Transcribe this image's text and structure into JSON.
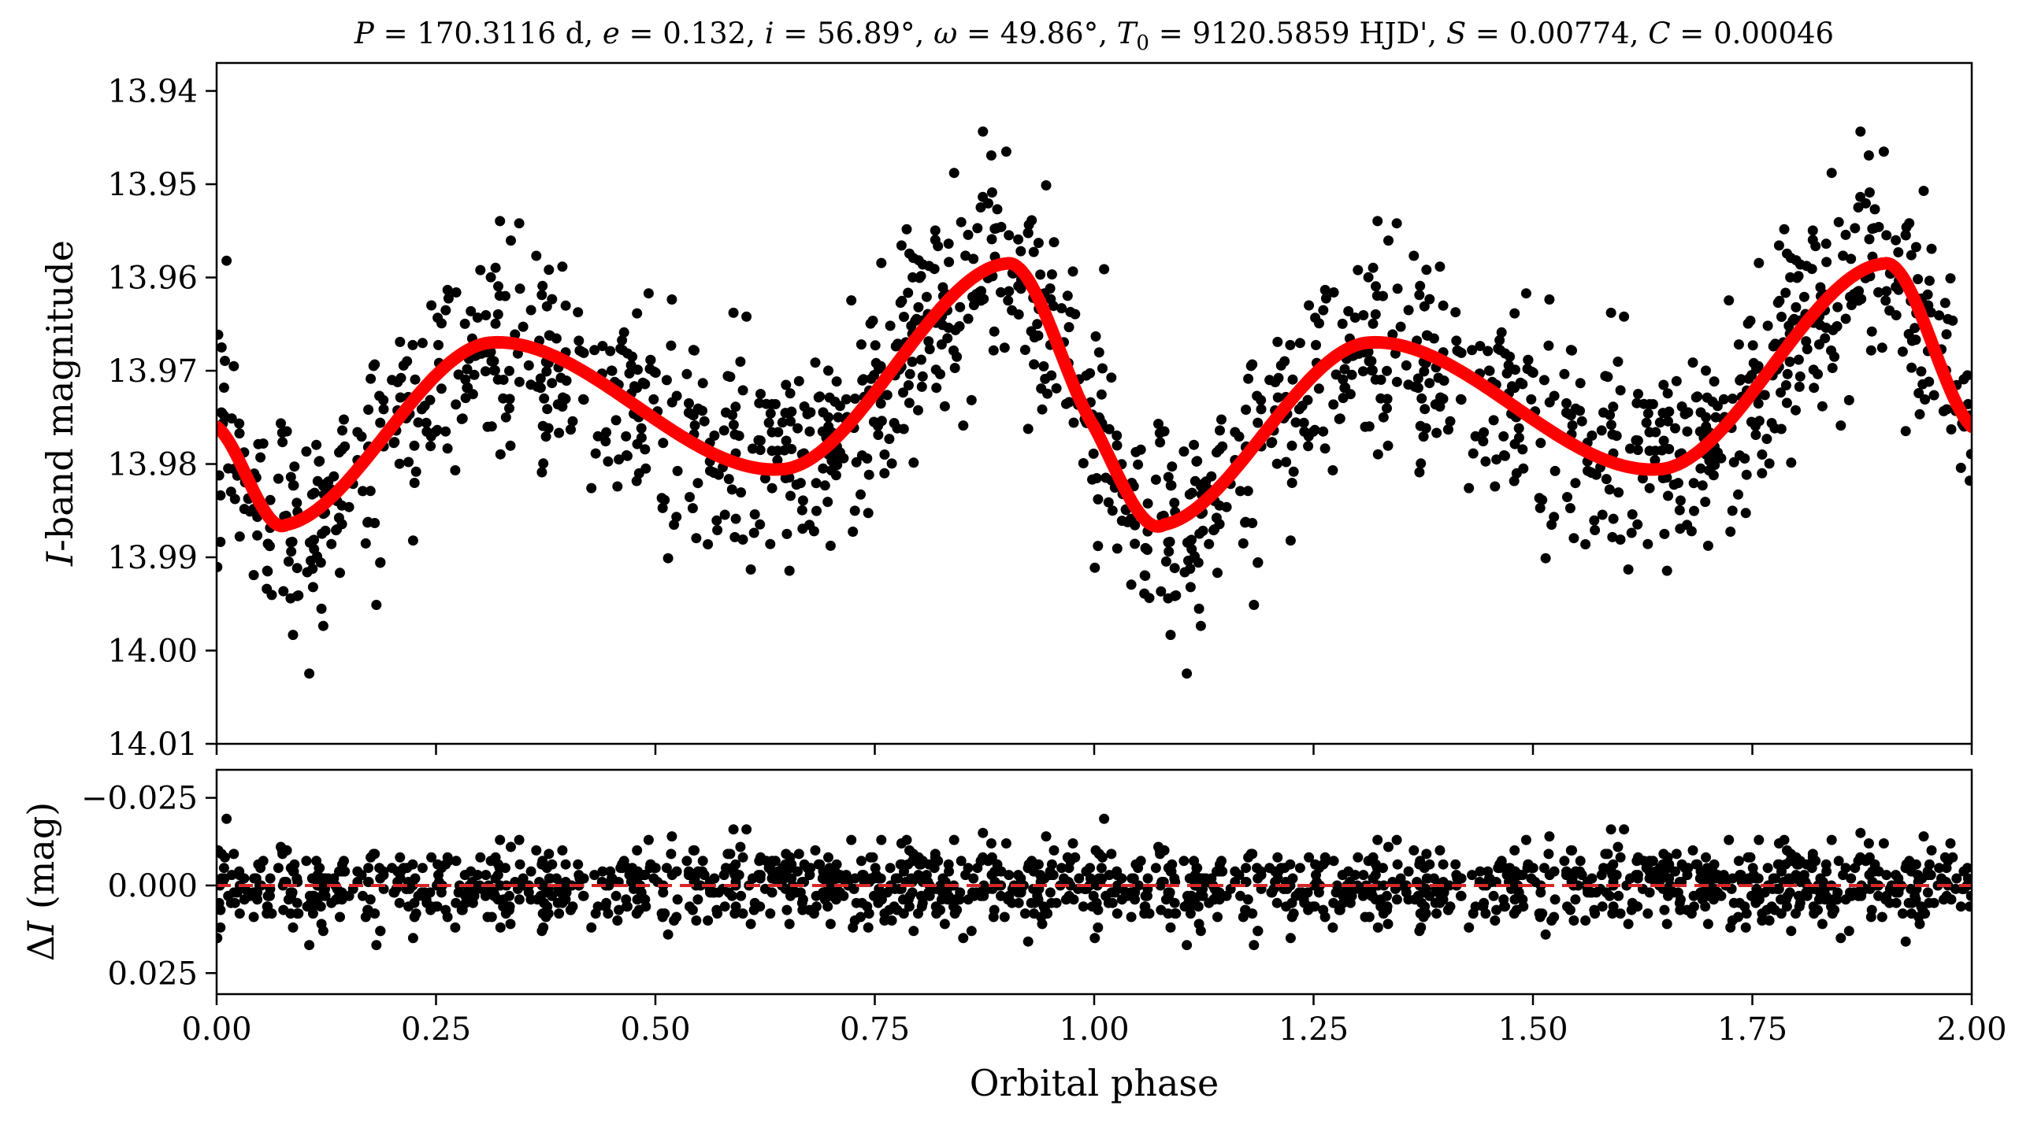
{
  "chart_data": [
    {
      "type": "scatter",
      "title": "P = 170.3116 d, e = 0.132, i = 56.89°, ω = 49.86°, T0 = 9120.5859 HJD', S = 0.00774, C = 0.00046",
      "xlabel": "",
      "ylabel": "I-band magnitude",
      "xlim": [
        0.0,
        2.0
      ],
      "ylim": [
        14.01,
        13.937
      ],
      "y_inverted": true,
      "yticks": [
        "13.94",
        "13.95",
        "13.96",
        "13.97",
        "13.98",
        "13.99",
        "14.00",
        "14.01"
      ],
      "ytick_values": [
        13.94,
        13.95,
        13.96,
        13.97,
        13.98,
        13.99,
        14.0,
        14.01
      ],
      "series": [
        {
          "kind": "points",
          "color": "#000000",
          "x_range": [
            0.0,
            2.0
          ],
          "density": "dense, ~1500 points, phase-folded data repeated over two cycles"
        },
        {
          "kind": "model-line",
          "color": "#ff0000",
          "x": [
            0.0,
            0.08,
            0.31,
            0.65,
            0.9,
            1.0,
            1.08,
            1.31,
            1.65,
            1.9,
            2.0
          ],
          "y": [
            13.976,
            13.9865,
            13.967,
            13.9805,
            13.9585,
            13.976,
            13.9865,
            13.967,
            13.9805,
            13.9585,
            13.976
          ]
        }
      ]
    },
    {
      "type": "scatter",
      "xlabel": "Orbital phase",
      "ylabel": "ΔI (mag)",
      "xlim": [
        0.0,
        2.0
      ],
      "ylim": [
        0.031,
        -0.033
      ],
      "y_inverted": true,
      "xticks": [
        "0.00",
        "0.25",
        "0.50",
        "0.75",
        "1.00",
        "1.25",
        "1.50",
        "1.75",
        "2.00"
      ],
      "xtick_values": [
        0.0,
        0.25,
        0.5,
        0.75,
        1.0,
        1.25,
        1.5,
        1.75,
        2.0
      ],
      "yticks": [
        "−0.025",
        "0.000",
        "0.025"
      ],
      "ytick_values": [
        -0.025,
        0.0,
        0.025
      ],
      "series": [
        {
          "kind": "residual-points",
          "color": "#000000",
          "spread_mag": 0.006
        },
        {
          "kind": "zero-line",
          "color": "#d62728",
          "style": "dashed",
          "y": 0.0
        }
      ]
    }
  ],
  "colors": {
    "points": "#000000",
    "model": "#ff0000",
    "zero_line": "#d62728"
  }
}
